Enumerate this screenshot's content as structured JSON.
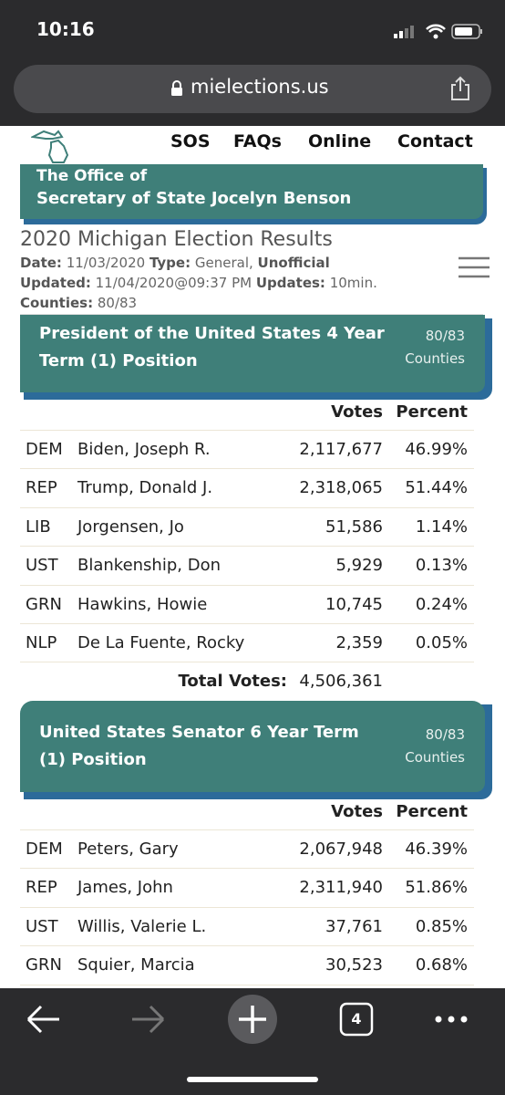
{
  "status_bar": {
    "time": "10:16"
  },
  "browser": {
    "url": "mielections.us",
    "tab_count": "4"
  },
  "nav": [
    "SOS",
    "FAQs",
    "Online",
    "Contact"
  ],
  "office_banner": {
    "line1": "The Office of",
    "line2": "Secretary of State Jocelyn Benson"
  },
  "results_header": {
    "title": "2020 Michigan Election Results",
    "date_label": "Date:",
    "date": "11/03/2020",
    "type_label": "Type:",
    "type": "General,",
    "status": "Unofficial",
    "updated_label": "Updated:",
    "updated": "11/04/2020@09:37 PM",
    "updates_label": "Updates:",
    "updates": "10min.",
    "counties_label": "Counties:",
    "counties": "80/83"
  },
  "races": [
    {
      "title_line1": "President of the United States 4 Year",
      "title_line2": "Term (1) Position",
      "counties": "80/83",
      "counties_label": "Counties",
      "votes_header": "Votes",
      "percent_header": "Percent",
      "candidates": [
        {
          "party": "DEM",
          "name": "Biden, Joseph R.",
          "votes": "2,117,677",
          "percent": "46.99%"
        },
        {
          "party": "REP",
          "name": "Trump, Donald J.",
          "votes": "2,318,065",
          "percent": "51.44%"
        },
        {
          "party": "LIB",
          "name": "Jorgensen, Jo",
          "votes": "51,586",
          "percent": "1.14%"
        },
        {
          "party": "UST",
          "name": "Blankenship, Don",
          "votes": "5,929",
          "percent": "0.13%"
        },
        {
          "party": "GRN",
          "name": "Hawkins, Howie",
          "votes": "10,745",
          "percent": "0.24%"
        },
        {
          "party": "NLP",
          "name": "De La Fuente, Rocky",
          "votes": "2,359",
          "percent": "0.05%"
        }
      ],
      "total_label": "Total Votes:",
      "total": "4,506,361"
    },
    {
      "title_line1": "United States Senator 6 Year Term",
      "title_line2": "(1) Position",
      "counties": "80/83",
      "counties_label": "Counties",
      "votes_header": "Votes",
      "percent_header": "Percent",
      "candidates": [
        {
          "party": "DEM",
          "name": "Peters, Gary",
          "votes": "2,067,948",
          "percent": "46.39%"
        },
        {
          "party": "REP",
          "name": "James, John",
          "votes": "2,311,940",
          "percent": "51.86%"
        },
        {
          "party": "UST",
          "name": "Willis, Valerie L.",
          "votes": "37,761",
          "percent": "0.85%"
        },
        {
          "party": "GRN",
          "name": "Squier, Marcia",
          "votes": "30,523",
          "percent": "0.68%"
        }
      ]
    }
  ]
}
